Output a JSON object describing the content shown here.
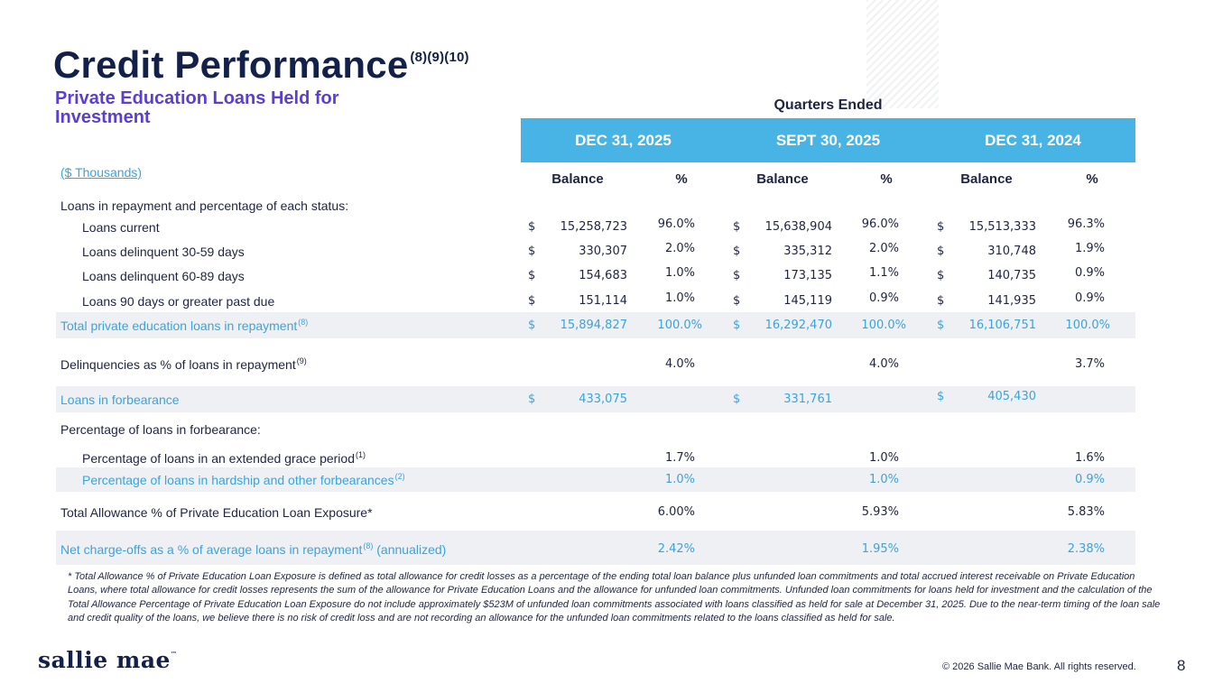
{
  "title": "Credit Performance",
  "title_sup": "(8)(9)(10)",
  "subtitle": "Private Education Loans Held for Investment",
  "quarters_label": "Quarters Ended",
  "periods": [
    "DEC 31, 2025",
    "SEPT 30, 2025",
    "DEC 31, 2024"
  ],
  "units_label": "($ Thousands)",
  "col_balance": "Balance",
  "col_pct": "%",
  "currency": "$",
  "section_repayment": "Loans in repayment and percentage of each status:",
  "rows": [
    {
      "label": "Loans current",
      "values": [
        "15,258,723",
        "96.0%",
        "15,638,904",
        "96.0%",
        "15,513,333",
        "96.3%"
      ]
    },
    {
      "label": "Loans delinquent 30-59 days",
      "values": [
        "330,307",
        "2.0%",
        "335,312",
        "2.0%",
        "310,748",
        "1.9%"
      ]
    },
    {
      "label": "Loans delinquent 60-89 days",
      "values": [
        "154,683",
        "1.0%",
        "173,135",
        "1.1%",
        "140,735",
        "0.9%"
      ]
    },
    {
      "label": "Loans 90 days or greater past due",
      "values": [
        "151,114",
        "1.0%",
        "145,119",
        "0.9%",
        "141,935",
        "0.9%"
      ]
    }
  ],
  "total_repayment": {
    "label": "Total private education loans in repayment",
    "sup": "(8)",
    "values": [
      "15,894,827",
      "100.0%",
      "16,292,470",
      "100.0%",
      "16,106,751",
      "100.0%"
    ]
  },
  "delinquencies": {
    "label": "Delinquencies as % of loans in repayment",
    "sup": "(9)",
    "values": [
      "4.0%",
      "4.0%",
      "3.7%"
    ]
  },
  "forbearance": {
    "label": "Loans in forbearance",
    "values": [
      "433,075",
      "331,761",
      "405,430"
    ]
  },
  "section_forbearance": "Percentage of loans in forbearance:",
  "grace": {
    "label": "Percentage of loans in an extended grace period",
    "sup": "(1)",
    "values": [
      "1.7%",
      "1.0%",
      "1.6%"
    ]
  },
  "hardship": {
    "label": "Percentage of loans in hardship and other forbearances",
    "sup": "(2)",
    "values": [
      "1.0%",
      "1.0%",
      "0.9%"
    ]
  },
  "allowance": {
    "label": "Total Allowance % of Private Education Loan Exposure*",
    "values": [
      "6.00%",
      "5.93%",
      "5.83%"
    ]
  },
  "chargeoffs": {
    "label": "Net charge-offs as a % of average loans in repayment",
    "sup": "(8)",
    "suffix": " (annualized)",
    "values": [
      "2.42%",
      "1.95%",
      "2.38%"
    ]
  },
  "footnote": "* Total Allowance % of Private Education Loan Exposure is defined as total allowance for credit losses as a percentage of the ending total loan balance plus unfunded loan commitments and total accrued interest receivable on Private Education Loans, where total allowance for credit losses represents the sum of the allowance for Private Education Loans and the allowance for unfunded loan commitments. Unfunded loan commitments for loans held for investment and the calculation of the Total Allowance Percentage of Private Education Loan Exposure do not include approximately $523M of unfunded loan commitments associated with loans classified as held for sale at December 31, 2025. Due to the near-term timing of the loan sale and credit quality of the loans, we believe there is no risk of credit loss and are not recording an allowance for the unfunded loan commitments related to the loans classified as held for sale.",
  "logo_text": "sallie mae",
  "logo_tm": "™",
  "copyright": "© 2026 Sallie Mae Bank. All rights reserved.",
  "page_number": "8"
}
